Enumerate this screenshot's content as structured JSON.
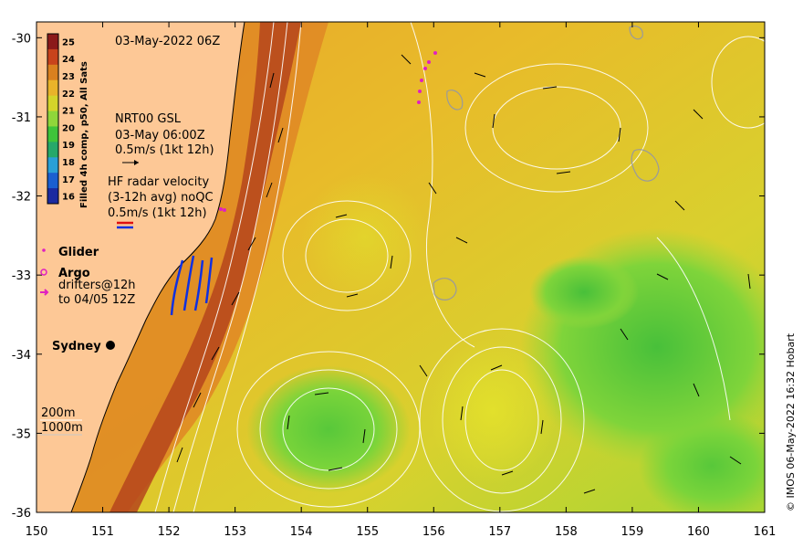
{
  "map": {
    "timestamp": "03-May-2022 06Z",
    "credit": "© IMOS 06-May-2022 16:32 Hobart",
    "x_ticks": [
      "150",
      "151",
      "152",
      "153",
      "154",
      "155",
      "156",
      "157",
      "158",
      "159",
      "160",
      "161"
    ],
    "y_ticks": [
      "-30",
      "-31",
      "-32",
      "-33",
      "-34",
      "-35",
      "-36"
    ],
    "lon_range": [
      150,
      161
    ],
    "lat_range": [
      -36,
      -29.8
    ],
    "colorbar": {
      "title": "Filled 4h comp, p50, All Sats",
      "ticks": [
        "25",
        "24",
        "23",
        "22",
        "21",
        "20",
        "19",
        "18",
        "17",
        "16"
      ],
      "colors": [
        "#8b1a1a",
        "#c8431c",
        "#d9801f",
        "#e9b32a",
        "#d4d42a",
        "#8fd63a",
        "#3fc43a",
        "#26a86a",
        "#2a9fd6",
        "#1b5fd0",
        "#1b2aa0"
      ]
    },
    "legend": {
      "gsl": [
        "NRT00 GSL",
        "03-May 06:00Z",
        "0.5m/s (1kt 12h)"
      ],
      "hf": [
        "HF radar velocity",
        "(3-12h avg) noQC",
        "0.5m/s (1kt 12h)"
      ],
      "glider": "Glider",
      "argo": "Argo",
      "drifters": [
        "drifters@12h",
        "to 04/05 12Z"
      ]
    },
    "places": {
      "sydney": "Sydney"
    },
    "isobaths": [
      "200m",
      "1000m"
    ],
    "colors": {
      "land": "#fdc896",
      "sst_warm": "#e9a02a",
      "sst_mid": "#e2c52a",
      "sst_cool": "#6fd23a",
      "current_core": "#b5451c",
      "glider": "#e020c0",
      "hf_blue": "#1030e0",
      "hf_red": "#e01010"
    }
  }
}
